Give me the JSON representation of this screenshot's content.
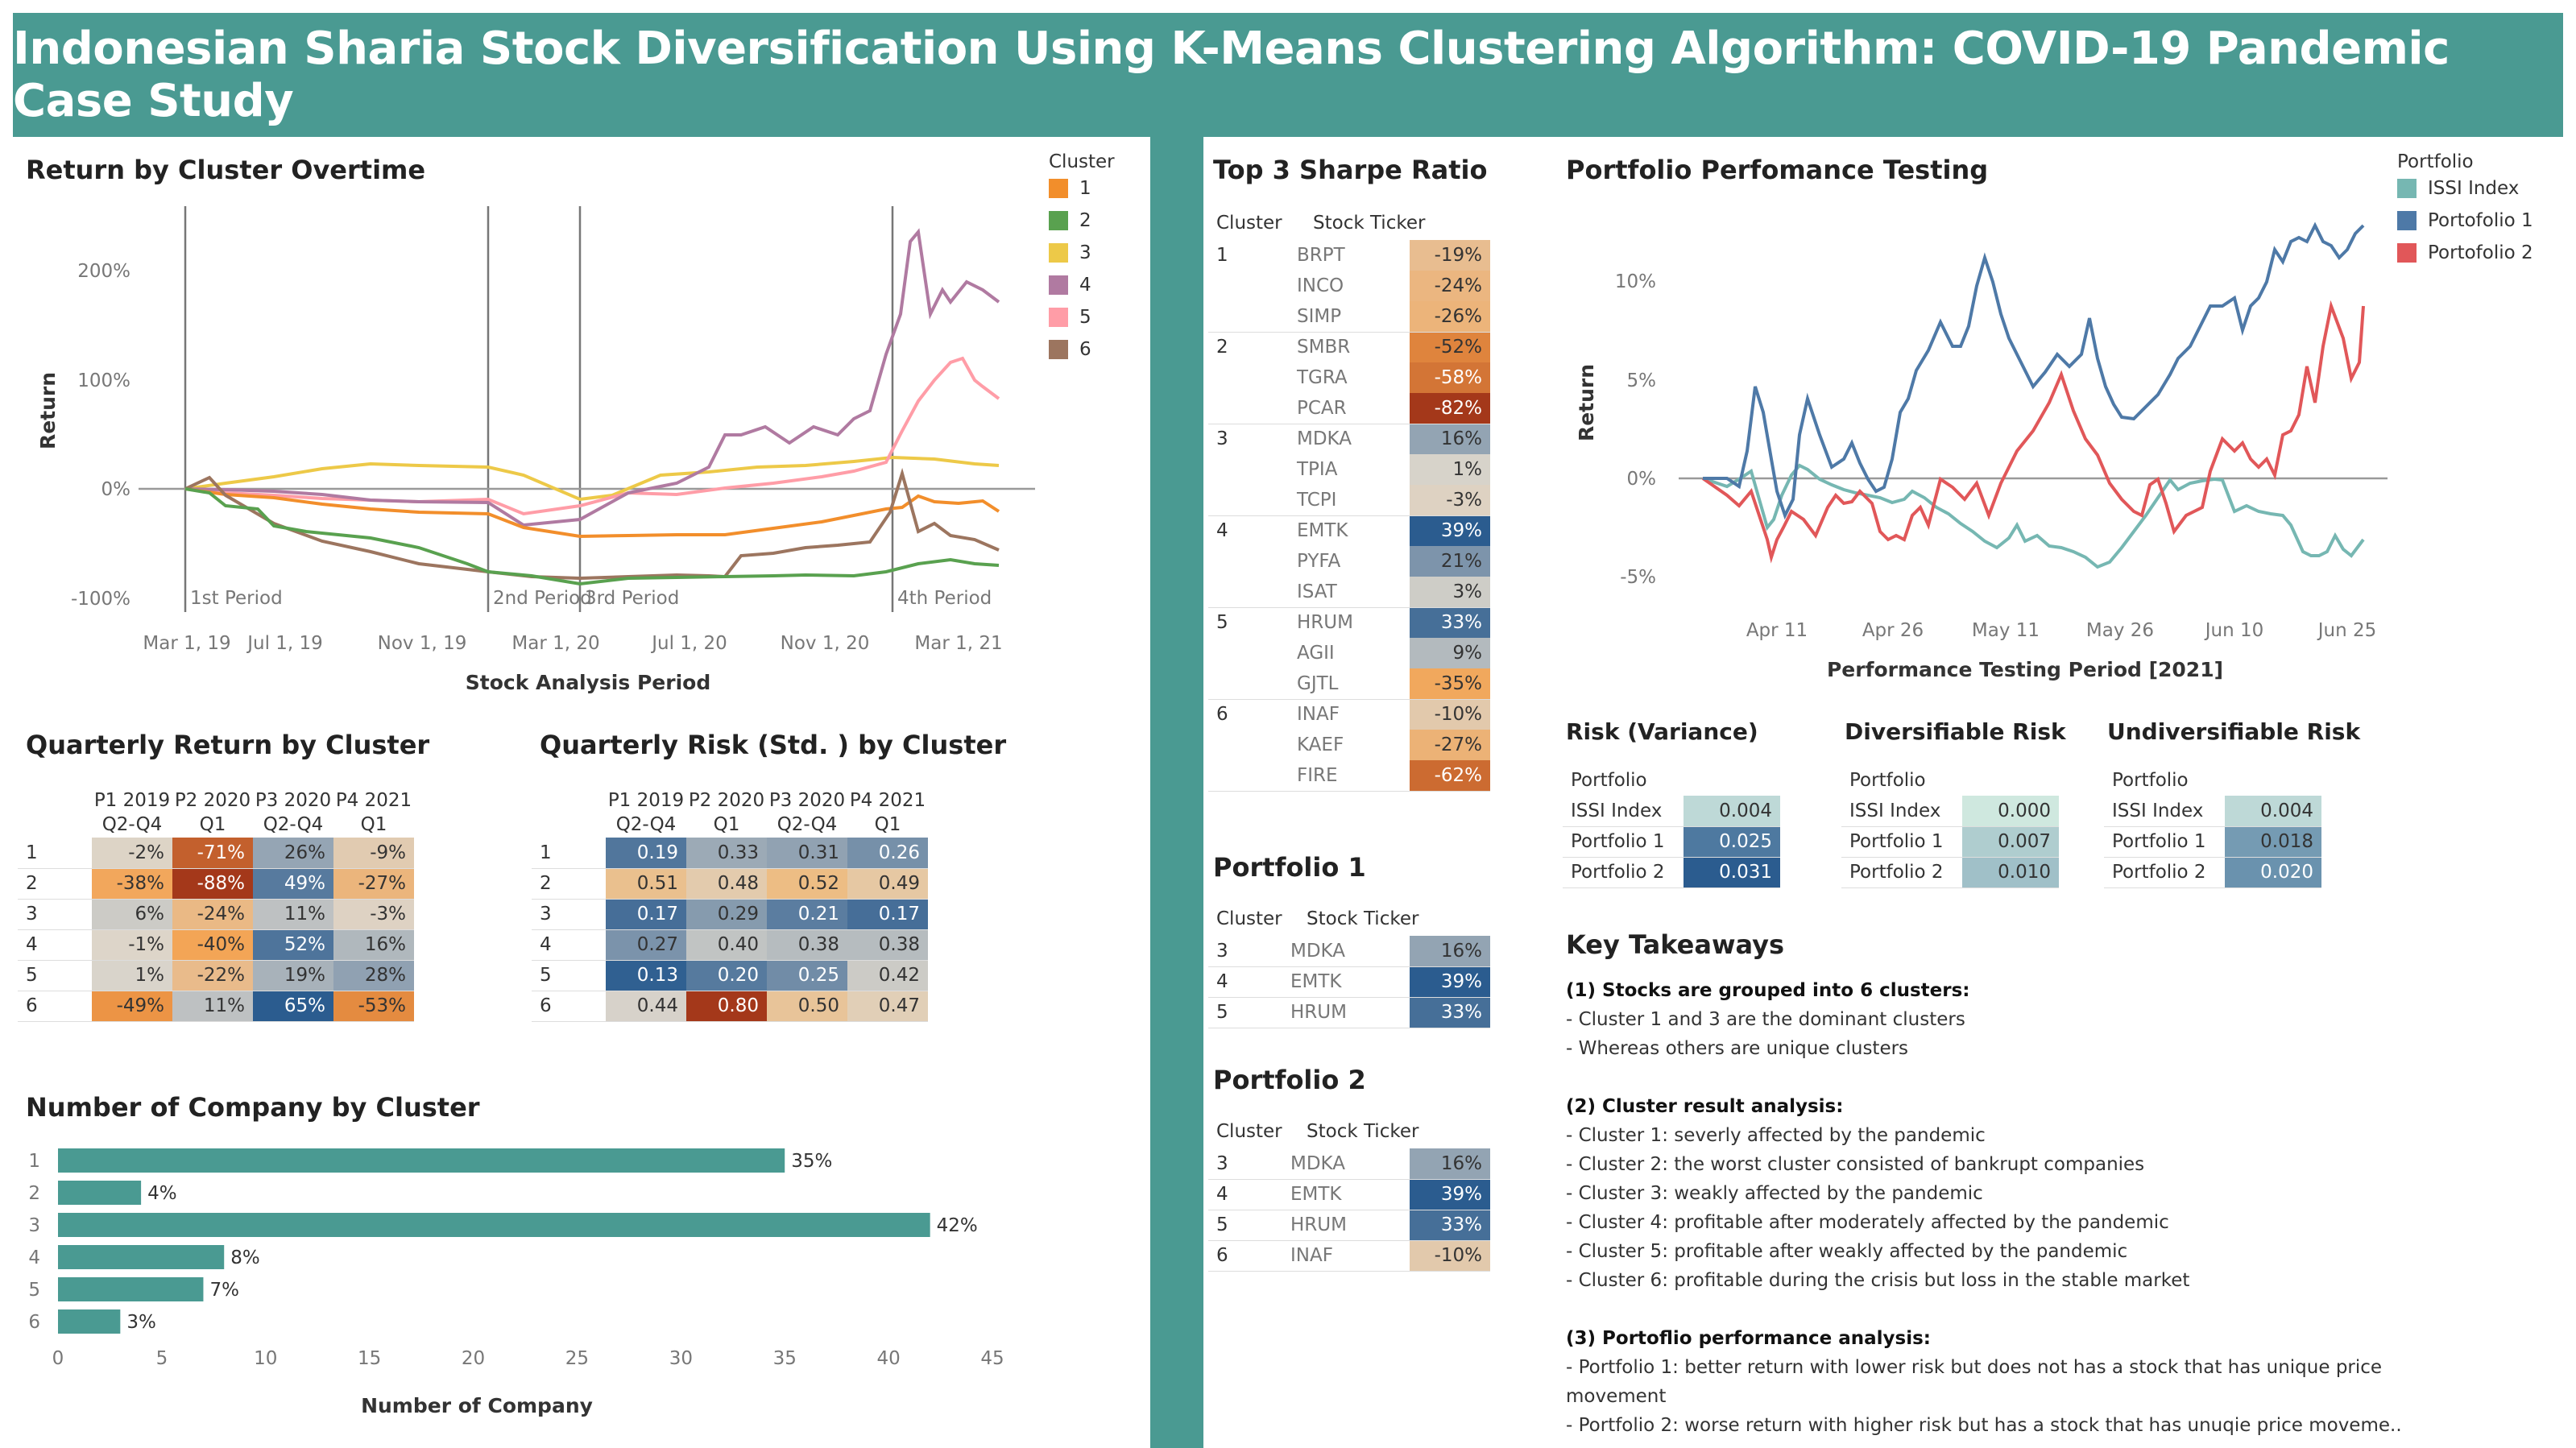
{
  "title": "Indonesian Sharia Stock Diversification Using K-Means Clustering Algorithm: COVID-19 Pandemic Case Study",
  "colors": {
    "accent": "#4a9a92",
    "c1": "#f28e2b",
    "c2": "#59a14f",
    "c3": "#edc948",
    "c4": "#b07aa1",
    "c5": "#ff9da7",
    "c6": "#9c755f",
    "issi": "#76b7b2",
    "p1": "#4e79a7",
    "p2": "#e15759"
  },
  "return_chart": {
    "title": "Return by Cluster Overtime",
    "ylabel": "Return",
    "xlabel": "Stock Analysis Period",
    "legend_title": "Cluster",
    "legend": [
      "1",
      "2",
      "3",
      "4",
      "5",
      "6"
    ],
    "yticks": [
      "200%",
      "100%",
      "0%",
      "-100%"
    ],
    "xticks": [
      "Mar 1, 19",
      "Jul 1, 19",
      "Nov 1, 19",
      "Mar 1, 20",
      "Jul 1, 20",
      "Nov 1, 20",
      "Mar 1, 21"
    ],
    "periods": [
      "1st Period",
      "2nd Period",
      "3rd Period",
      "4th Period"
    ]
  },
  "quarterly_return": {
    "title": "Quarterly Return by Cluster",
    "headers": [
      [
        "P1 2019",
        "Q2-Q4"
      ],
      [
        "P2 2020",
        "Q1"
      ],
      [
        "P3 2020",
        "Q2-Q4"
      ],
      [
        "P4 2021",
        "Q1"
      ]
    ],
    "rows": [
      {
        "c": "1",
        "v": [
          "-2%",
          "-71%",
          "26%",
          "-9%"
        ]
      },
      {
        "c": "2",
        "v": [
          "-38%",
          "-88%",
          "49%",
          "-27%"
        ]
      },
      {
        "c": "3",
        "v": [
          "6%",
          "-24%",
          "11%",
          "-3%"
        ]
      },
      {
        "c": "4",
        "v": [
          "-1%",
          "-40%",
          "52%",
          "16%"
        ]
      },
      {
        "c": "5",
        "v": [
          "1%",
          "-22%",
          "19%",
          "28%"
        ]
      },
      {
        "c": "6",
        "v": [
          "-49%",
          "11%",
          "65%",
          "-53%"
        ]
      }
    ]
  },
  "quarterly_risk": {
    "title": "Quarterly Risk (Std. ) by Cluster",
    "headers": [
      [
        "P1 2019",
        "Q2-Q4"
      ],
      [
        "P2 2020",
        "Q1"
      ],
      [
        "P3 2020",
        "Q2-Q4"
      ],
      [
        "P4 2021",
        "Q1"
      ]
    ],
    "rows": [
      {
        "c": "1",
        "v": [
          "0.19",
          "0.33",
          "0.31",
          "0.26"
        ]
      },
      {
        "c": "2",
        "v": [
          "0.51",
          "0.48",
          "0.52",
          "0.49"
        ]
      },
      {
        "c": "3",
        "v": [
          "0.17",
          "0.29",
          "0.21",
          "0.17"
        ]
      },
      {
        "c": "4",
        "v": [
          "0.27",
          "0.40",
          "0.38",
          "0.38"
        ]
      },
      {
        "c": "5",
        "v": [
          "0.13",
          "0.20",
          "0.25",
          "0.42"
        ]
      },
      {
        "c": "6",
        "v": [
          "0.44",
          "0.80",
          "0.50",
          "0.47"
        ]
      }
    ]
  },
  "company_chart": {
    "title": "Number of Company by Cluster",
    "xlabel": "Number of Company",
    "xticks": [
      "0",
      "5",
      "10",
      "15",
      "20",
      "25",
      "30",
      "35",
      "40",
      "45"
    ]
  },
  "chart_data": [
    {
      "type": "bar",
      "title": "Number of Company by Cluster",
      "categories": [
        "1",
        "2",
        "3",
        "4",
        "5",
        "6"
      ],
      "values": [
        35,
        4,
        42,
        8,
        7,
        3
      ],
      "labels": [
        "35%",
        "4%",
        "42%",
        "8%",
        "7%",
        "3%"
      ],
      "xlabel": "Number of Company",
      "xlim": [
        0,
        45
      ]
    }
  ],
  "sharpe": {
    "title": "Top 3 Sharpe Ratio",
    "col1": "Cluster",
    "col2": "Stock Ticker",
    "groups": [
      {
        "c": "1",
        "rows": [
          [
            "BRPT",
            "-19%"
          ],
          [
            "INCO",
            "-24%"
          ],
          [
            "SIMP",
            "-26%"
          ]
        ]
      },
      {
        "c": "2",
        "rows": [
          [
            "SMBR",
            "-52%"
          ],
          [
            "TGRA",
            "-58%"
          ],
          [
            "PCAR",
            "-82%"
          ]
        ]
      },
      {
        "c": "3",
        "rows": [
          [
            "MDKA",
            "16%"
          ],
          [
            "TPIA",
            "1%"
          ],
          [
            "TCPI",
            "-3%"
          ]
        ]
      },
      {
        "c": "4",
        "rows": [
          [
            "EMTK",
            "39%"
          ],
          [
            "PYFA",
            "21%"
          ],
          [
            "ISAT",
            "3%"
          ]
        ]
      },
      {
        "c": "5",
        "rows": [
          [
            "HRUM",
            "33%"
          ],
          [
            "AGII",
            "9%"
          ],
          [
            "GJTL",
            "-35%"
          ]
        ]
      },
      {
        "c": "6",
        "rows": [
          [
            "INAF",
            "-10%"
          ],
          [
            "KAEF",
            "-27%"
          ],
          [
            "FIRE",
            "-62%"
          ]
        ]
      }
    ]
  },
  "portfolio1": {
    "title": "Portfolio 1",
    "col1": "Cluster",
    "col2": "Stock Ticker",
    "rows": [
      [
        "3",
        "MDKA",
        "16%"
      ],
      [
        "4",
        "EMTK",
        "39%"
      ],
      [
        "5",
        "HRUM",
        "33%"
      ]
    ]
  },
  "portfolio2": {
    "title": "Portfolio 2",
    "col1": "Cluster",
    "col2": "Stock Ticker",
    "rows": [
      [
        "3",
        "MDKA",
        "16%"
      ],
      [
        "4",
        "EMTK",
        "39%"
      ],
      [
        "5",
        "HRUM",
        "33%"
      ],
      [
        "6",
        "INAF",
        "-10%"
      ]
    ]
  },
  "perf_chart": {
    "title": "Portfolio Perfomance Testing",
    "ylabel": "Return",
    "xlabel": "Performance Testing Period [2021]",
    "legend_title": "Portfolio",
    "legend": [
      "ISSI Index",
      "Portofolio 1",
      "Portofolio 2"
    ],
    "yticks": [
      "10%",
      "5%",
      "0%",
      "-5%"
    ],
    "xticks": [
      "Apr 11",
      "Apr 26",
      "May 11",
      "May 26",
      "Jun 10",
      "Jun 25"
    ]
  },
  "risk": {
    "col": "Portfolio",
    "tables": [
      {
        "title": "Risk (Variance)",
        "rows": [
          [
            "ISSI Index",
            "0.004"
          ],
          [
            "Portfolio 1",
            "0.025"
          ],
          [
            "Portfolio 2",
            "0.031"
          ]
        ]
      },
      {
        "title": "Diversifiable Risk",
        "rows": [
          [
            "ISSI Index",
            "0.000"
          ],
          [
            "Portfolio 1",
            "0.007"
          ],
          [
            "Portfolio 2",
            "0.010"
          ]
        ]
      },
      {
        "title": "Undiversifiable Risk",
        "rows": [
          [
            "ISSI Index",
            "0.004"
          ],
          [
            "Portfolio 1",
            "0.018"
          ],
          [
            "Portfolio 2",
            "0.020"
          ]
        ]
      }
    ]
  },
  "takeaways": {
    "title": "Key Takeaways",
    "lines": [
      {
        "b": true,
        "t": "(1) Stocks are grouped into 6 clusters:"
      },
      {
        "b": false,
        "t": "- Cluster 1 and  3 are the dominant clusters"
      },
      {
        "b": false,
        "t": "- Whereas others are unique clusters"
      },
      {
        "b": false,
        "t": " "
      },
      {
        "b": true,
        "t": "(2) Cluster result analysis:"
      },
      {
        "b": false,
        "t": "- Cluster 1: severly affected by the pandemic"
      },
      {
        "b": false,
        "t": "- Cluster 2: the worst cluster consisted of bankrupt companies"
      },
      {
        "b": false,
        "t": "- Cluster 3: weakly affected by the pandemic"
      },
      {
        "b": false,
        "t": "- Cluster 4: profitable after moderately affected by the pandemic"
      },
      {
        "b": false,
        "t": "- Cluster 5: profitable after weakly affected by the pandemic"
      },
      {
        "b": false,
        "t": "- Cluster 6: profitable during the crisis but loss in the stable market"
      },
      {
        "b": false,
        "t": " "
      },
      {
        "b": true,
        "t": "(3) Portoflio performance analysis:"
      },
      {
        "b": false,
        "t": "- Portfolio 1: better return with lower risk but does not has a stock that has unique price"
      },
      {
        "b": false,
        "t": "movement"
      },
      {
        "b": false,
        "t": "- Portfolio 2: worse return with higher risk but has a stock that has unuqie price moveme.."
      }
    ]
  }
}
